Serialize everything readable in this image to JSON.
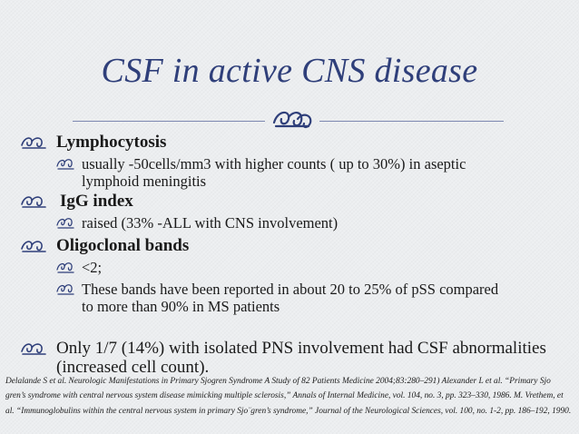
{
  "title": "CSF in active CNS disease",
  "bullets": [
    {
      "label": "Lymphocytosis",
      "subs": [
        "usually -50cells/mm3 with higher counts ( up to 30%)  in aseptic lymphoid meningitis"
      ]
    },
    {
      "label": "IgG index",
      "subs": [
        "raised  (33% -ALL with CNS involvement)"
      ]
    },
    {
      "label": "Oligoclonal bands",
      "subs": [
        "<2;",
        "These bands have been reported in about 20 to 25% of pSS compared to more than 90% in MS patients"
      ]
    },
    {
      "label": "Only 1/7 (14%) with isolated PNS involvement had CSF abnormalities (increased cell count).",
      "subs": []
    }
  ],
  "references": "Delalande S et al. Neurologic Manifestations in Primary Sjogren Syndrome  A Study of 82 Patients  Medicine 2004;83:280–291) Alexander L et al. “Primary Sjo gren’s syndrome with central nervous system disease mimicking multiple sclerosis,” Annals of Internal Medicine, vol. 104, no. 3, pp. 323–330, 1986.  M. Vrethem,  et al. “Immunoglobulins within the central nervous system in primary Sjo¨gren’s syndrome,” Journal of the Neurological Sciences, vol. 100, no. 1-2, pp. 186–192, 1990.",
  "colors": {
    "title": "#2f3f7a",
    "rule": "#7c87b0",
    "bullet": "#2f3f7a"
  },
  "icons": {
    "ornament": "swirl-ornament-icon",
    "bullet": "swirl-bullet-icon"
  }
}
